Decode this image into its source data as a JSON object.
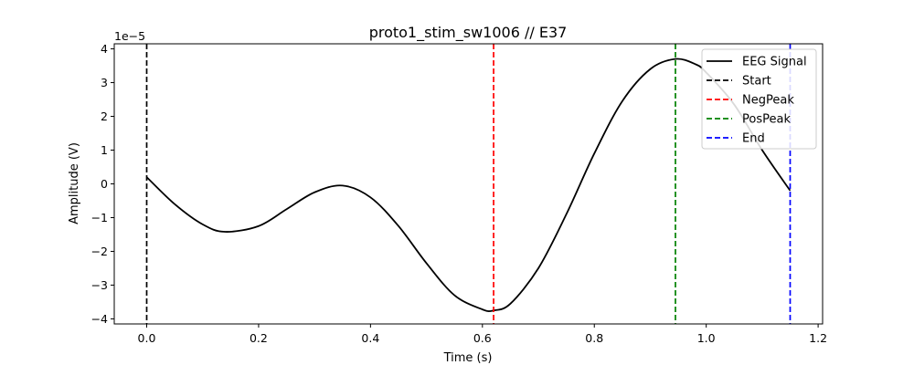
{
  "chart_data": {
    "type": "line",
    "title": "proto1_stim_sw1006 // E37",
    "xlabel": "Time (s)",
    "ylabel": "Amplitude (V)",
    "y_offset_label": "1e−5",
    "xlim": [
      -0.058,
      1.208
    ],
    "ylim": [
      -4.15,
      4.15
    ],
    "x_ticks": [
      0.0,
      0.2,
      0.4,
      0.6,
      0.8,
      1.0,
      1.2
    ],
    "x_tick_labels": [
      "0.0",
      "0.2",
      "0.4",
      "0.6",
      "0.8",
      "1.0",
      "1.2"
    ],
    "y_ticks": [
      -4,
      -3,
      -2,
      -1,
      0,
      1,
      2,
      3,
      4
    ],
    "y_tick_labels": [
      "−4",
      "−3",
      "−2",
      "−1",
      "0",
      "1",
      "2",
      "3",
      "4"
    ],
    "grid": false,
    "legend_position": "top-right",
    "series": [
      {
        "name": "EEG Signal",
        "color": "#000000",
        "style": "solid",
        "x": [
          0.0,
          0.05,
          0.1,
          0.14,
          0.2,
          0.25,
          0.3,
          0.35,
          0.4,
          0.45,
          0.5,
          0.55,
          0.6,
          0.62,
          0.65,
          0.7,
          0.75,
          0.8,
          0.85,
          0.9,
          0.945,
          0.98,
          1.0,
          1.05,
          1.1,
          1.15
        ],
        "y": [
          0.2,
          -0.6,
          -1.2,
          -1.42,
          -1.25,
          -0.75,
          -0.25,
          -0.05,
          -0.4,
          -1.25,
          -2.35,
          -3.3,
          -3.72,
          -3.75,
          -3.55,
          -2.5,
          -0.9,
          0.9,
          2.45,
          3.4,
          3.7,
          3.55,
          3.3,
          2.35,
          1.0,
          -0.2
        ]
      }
    ],
    "vlines": [
      {
        "name": "Start",
        "x": 0.0,
        "color": "#000000",
        "style": "dashed"
      },
      {
        "name": "NegPeak",
        "x": 0.62,
        "color": "#ff0000",
        "style": "dashed"
      },
      {
        "name": "PosPeak",
        "x": 0.945,
        "color": "#008000",
        "style": "dashed"
      },
      {
        "name": "End",
        "x": 1.15,
        "color": "#0000ff",
        "style": "dashed"
      }
    ]
  }
}
